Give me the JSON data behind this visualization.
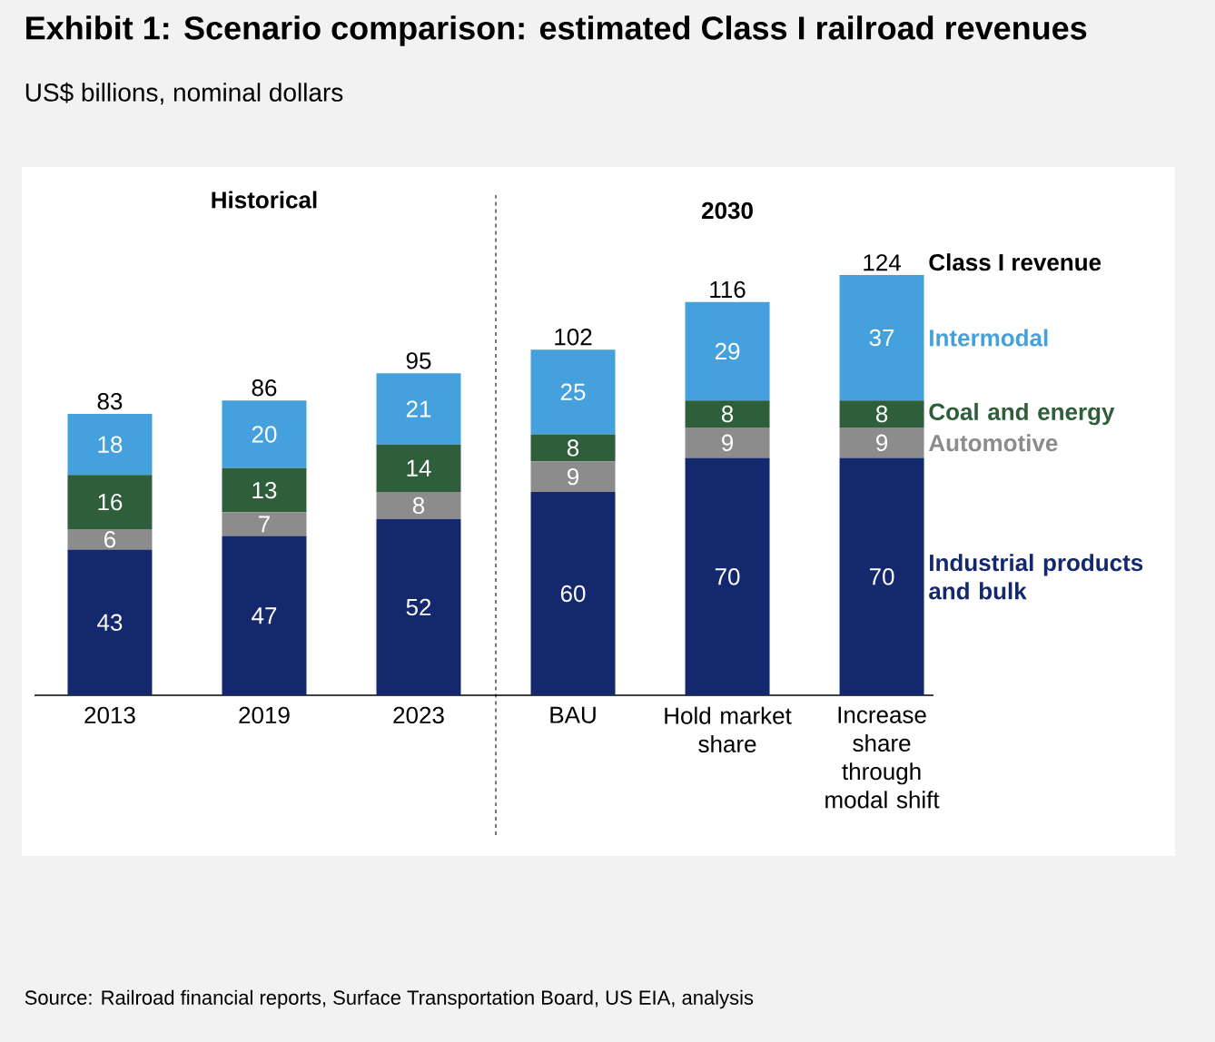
{
  "chart_data": {
    "type": "bar",
    "title": "Exhibit 1: Scenario comparison: estimated Class I railroad revenues",
    "subtitle": "US$ billions, nominal dollars",
    "categories": [
      "2013",
      "2019",
      "2023",
      "BAU",
      "Hold market share",
      "Increase share through modal shift"
    ],
    "stacked": true,
    "data_labels": true,
    "series": [
      {
        "name": "Industrial products and bulk",
        "color": "#14286e",
        "values": [
          43,
          47,
          52,
          60,
          70,
          70
        ]
      },
      {
        "name": "Automotive",
        "color": "#8c8c8c",
        "values": [
          6,
          7,
          8,
          9,
          9,
          9
        ]
      },
      {
        "name": "Coal and energy",
        "color": "#2e5e3a",
        "values": [
          16,
          13,
          14,
          8,
          8,
          8
        ]
      },
      {
        "name": "Intermodal",
        "color": "#45a0de",
        "values": [
          18,
          20,
          21,
          25,
          29,
          37
        ]
      }
    ],
    "totals": [
      "83",
      "86",
      "95",
      "102",
      "116",
      "124"
    ],
    "annotations": [
      "Historical",
      "2030",
      "Class I revenue",
      "Source:    Railroad financial reports, Surface Transportation Board, US EIA, analysis"
    ]
  }
}
